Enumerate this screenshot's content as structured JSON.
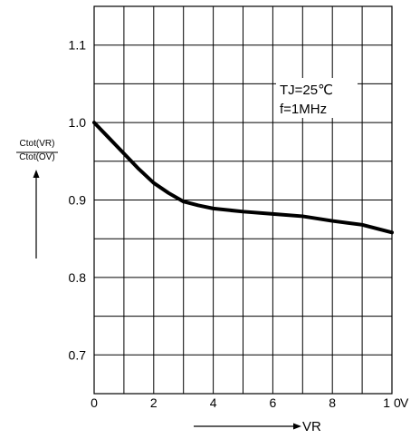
{
  "chart_data": {
    "type": "line",
    "x": [
      0,
      0.5,
      1,
      1.5,
      2,
      2.5,
      3,
      3.5,
      4,
      5,
      6,
      7,
      8,
      9,
      10
    ],
    "series": [
      {
        "values": [
          1.0,
          0.98,
          0.96,
          0.94,
          0.922,
          0.909,
          0.898,
          0.893,
          0.889,
          0.885,
          0.882,
          0.879,
          0.873,
          0.868,
          0.858
        ]
      }
    ],
    "xlim": [
      0,
      10
    ],
    "ylim": [
      0.65,
      1.15
    ],
    "x_ticks": [
      "0",
      "2",
      "4",
      "6",
      "8",
      "1 0"
    ],
    "x_unit": "V",
    "y_ticks": [
      "0.7",
      "0.8",
      "0.9",
      "1.0",
      "1.1"
    ],
    "ylabel_numerator": "Ctot(VR)",
    "ylabel_denominator": "Ctot(OV)",
    "xlabel": "VR",
    "annotation_line1": "TJ=25℃",
    "annotation_line2": "f=1MHz",
    "grid": true
  }
}
